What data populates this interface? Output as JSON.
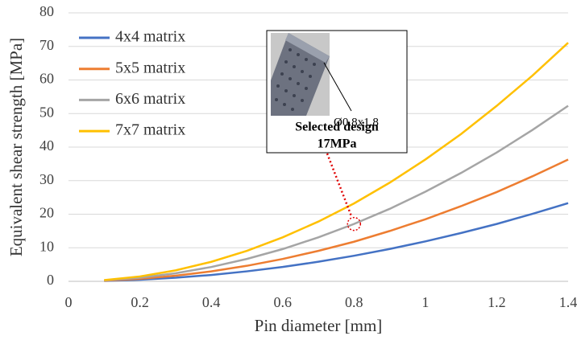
{
  "chart_data": {
    "type": "line",
    "x_label": "Pin diameter [mm]",
    "y_label": "Equivalent shear strength [MPa]",
    "x": [
      0.1,
      0.2,
      0.3,
      0.4,
      0.5,
      0.6,
      0.7,
      0.8,
      0.9,
      1.0,
      1.1,
      1.2,
      1.3,
      1.4
    ],
    "series": [
      {
        "name": "4x4 matrix",
        "color": "#4472c4",
        "values": [
          0.12,
          0.48,
          1.07,
          1.9,
          2.98,
          4.28,
          5.83,
          7.62,
          9.64,
          11.9,
          14.4,
          17.1,
          20.1,
          23.3
        ]
      },
      {
        "name": "5x5 matrix",
        "color": "#ed7d31",
        "values": [
          0.19,
          0.74,
          1.67,
          2.96,
          4.63,
          6.66,
          9.07,
          11.8,
          15.0,
          18.5,
          22.4,
          26.6,
          31.3,
          36.3
        ]
      },
      {
        "name": "6x6 matrix",
        "color": "#a5a5a5",
        "values": [
          0.27,
          1.07,
          2.4,
          4.27,
          6.68,
          9.61,
          13.1,
          17.1,
          21.6,
          26.7,
          32.3,
          38.4,
          45.1,
          52.3
        ]
      },
      {
        "name": "7x7 matrix",
        "color": "#ffc000",
        "values": [
          0.36,
          1.45,
          3.27,
          5.81,
          9.08,
          13.1,
          17.8,
          23.2,
          29.4,
          36.3,
          43.9,
          52.3,
          61.3,
          71.1
        ]
      }
    ],
    "xlim": [
      0,
      1.4
    ],
    "xticks": [
      0,
      0.2,
      0.4,
      0.6,
      0.8,
      1,
      1.2,
      1.4
    ],
    "ylim": [
      0,
      80
    ],
    "yticks": [
      0,
      10,
      20,
      30,
      40,
      50,
      60,
      70,
      80
    ],
    "grid": true,
    "legend": "upper left",
    "annotation": {
      "dimension": "Ø0.8x1.8",
      "title": "Selected design",
      "value": "17MPa"
    }
  }
}
